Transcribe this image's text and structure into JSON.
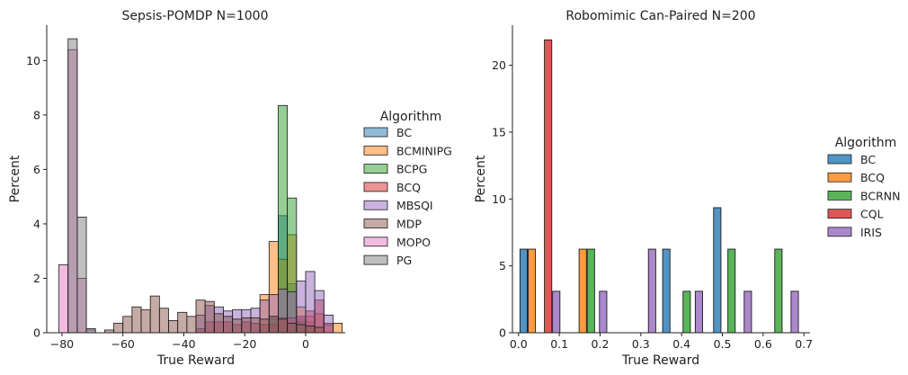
{
  "chart_data": [
    {
      "type": "histogram",
      "title": "Sepsis-POMDP N=1000",
      "xlabel": "True Reward",
      "ylabel": "Percent",
      "xlim": [
        -85,
        13
      ],
      "ylim": [
        0,
        11.3
      ],
      "xticks": [
        -80,
        -60,
        -40,
        -20,
        0
      ],
      "yticks": [
        0,
        2,
        4,
        6,
        8,
        10
      ],
      "bin_width": 3,
      "legend": {
        "title": "Algorithm",
        "position": "right"
      },
      "series": [
        {
          "name": "BC",
          "color": "#1f77b4",
          "bins": [
            [
              -12,
              0.6
            ],
            [
              -9,
              4.3
            ],
            [
              -6,
              1.8
            ],
            [
              -3,
              0.5
            ],
            [
              0,
              0.4
            ]
          ]
        },
        {
          "name": "BCMINIPG",
          "color": "#ff7f0e",
          "bins": [
            [
              -15,
              1.4
            ],
            [
              -12,
              3.35
            ],
            [
              -9,
              2.7
            ],
            [
              -6,
              3.6
            ],
            [
              -3,
              0.95
            ],
            [
              0,
              0.6
            ],
            [
              3,
              0.7
            ],
            [
              6,
              0.35
            ],
            [
              9,
              0.35
            ]
          ]
        },
        {
          "name": "BCPG",
          "color": "#2ca02c",
          "bins": [
            [
              -12,
              0.5
            ],
            [
              -9,
              8.35
            ],
            [
              -6,
              4.95
            ],
            [
              -3,
              0.4
            ]
          ]
        },
        {
          "name": "BCQ",
          "color": "#d62728",
          "bins": [
            [
              -36,
              0.15
            ],
            [
              -33,
              0.4
            ],
            [
              -30,
              0.4
            ],
            [
              -27,
              0.4
            ],
            [
              -24,
              0.3
            ],
            [
              -21,
              0.4
            ],
            [
              -18,
              0.35
            ],
            [
              -15,
              0.3
            ],
            [
              -12,
              0.3
            ],
            [
              -9,
              0.55
            ],
            [
              -6,
              0.55
            ],
            [
              -3,
              0.6
            ],
            [
              0,
              0.8
            ],
            [
              3,
              1.2
            ],
            [
              6,
              0.3
            ]
          ]
        },
        {
          "name": "MBSQI",
          "color": "#9467bd",
          "bins": [
            [
              -36,
              0.65
            ],
            [
              -33,
              1.0
            ],
            [
              -30,
              0.95
            ],
            [
              -27,
              0.8
            ],
            [
              -24,
              0.85
            ],
            [
              -21,
              0.85
            ],
            [
              -18,
              0.9
            ],
            [
              -15,
              1.2
            ],
            [
              -12,
              1.4
            ],
            [
              -9,
              1.6
            ],
            [
              -6,
              1.5
            ],
            [
              -3,
              1.9
            ],
            [
              0,
              2.25
            ],
            [
              3,
              1.55
            ],
            [
              6,
              0.65
            ]
          ]
        },
        {
          "name": "MDP",
          "color": "#8c564b",
          "bins": [
            [
              -66,
              0.1
            ],
            [
              -63,
              0.35
            ],
            [
              -60,
              0.6
            ],
            [
              -57,
              0.95
            ],
            [
              -54,
              0.85
            ],
            [
              -51,
              1.35
            ],
            [
              -48,
              0.9
            ],
            [
              -45,
              0.45
            ],
            [
              -42,
              0.75
            ],
            [
              -39,
              0.6
            ],
            [
              -36,
              1.2
            ],
            [
              -33,
              1.15
            ],
            [
              -30,
              0.7
            ],
            [
              -27,
              0.6
            ],
            [
              -24,
              0.5
            ],
            [
              -21,
              0.55
            ],
            [
              -18,
              0.55
            ],
            [
              -15,
              0.5
            ],
            [
              -12,
              0.6
            ],
            [
              -9,
              0.5
            ],
            [
              -6,
              0.35
            ],
            [
              -3,
              0.3
            ],
            [
              0,
              0.25
            ],
            [
              3,
              0.2
            ]
          ]
        },
        {
          "name": "MOPO",
          "color": "#e377c2",
          "bins": [
            [
              -81,
              2.5
            ],
            [
              -78,
              10.4
            ],
            [
              -75,
              2.0
            ],
            [
              -72,
              0.1
            ]
          ]
        },
        {
          "name": "PG",
          "color": "#7f7f7f",
          "bins": [
            [
              -78,
              10.8
            ],
            [
              -75,
              4.25
            ],
            [
              -72,
              0.15
            ]
          ]
        }
      ]
    },
    {
      "type": "bar",
      "title": "Robomimic Can-Paired N=200",
      "xlabel": "True Reward",
      "ylabel": "Percent",
      "xlim": [
        -0.015,
        0.715
      ],
      "ylim": [
        0,
        23
      ],
      "xticks": [
        0.0,
        0.1,
        0.2,
        0.3,
        0.4,
        0.5,
        0.6,
        0.7
      ],
      "yticks": [
        0,
        5,
        10,
        15,
        20
      ],
      "bar_width": 0.018,
      "legend": {
        "title": "Algorithm",
        "position": "right"
      },
      "series": [
        {
          "name": "BC",
          "color": "#1f77b4",
          "bars": [
            [
              0.0125,
              6.25
            ],
            [
              0.3625,
              6.25
            ],
            [
              0.4875,
              9.35
            ]
          ]
        },
        {
          "name": "BCQ",
          "color": "#ff7f0e",
          "bars": [
            [
              0.0325,
              6.25
            ],
            [
              0.1575,
              6.25
            ]
          ]
        },
        {
          "name": "BCRNN",
          "color": "#2ca02c",
          "bars": [
            [
              0.1775,
              6.25
            ],
            [
              0.4125,
              3.1
            ],
            [
              0.5225,
              6.25
            ],
            [
              0.6375,
              6.25
            ]
          ]
        },
        {
          "name": "CQL",
          "color": "#d62728",
          "bars": [
            [
              0.0725,
              21.9
            ]
          ]
        },
        {
          "name": "IRIS",
          "color": "#9467bd",
          "bars": [
            [
              0.0925,
              3.1
            ],
            [
              0.2075,
              3.1
            ],
            [
              0.3275,
              6.25
            ],
            [
              0.4425,
              3.1
            ],
            [
              0.5625,
              3.1
            ],
            [
              0.6775,
              3.1
            ]
          ]
        }
      ]
    }
  ]
}
